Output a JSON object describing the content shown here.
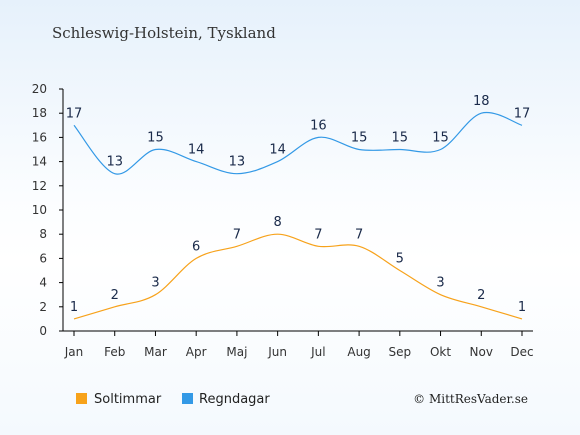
{
  "chart_data": {
    "type": "line",
    "title": "Schleswig-Holstein, Tyskland",
    "categories": [
      "Jan",
      "Feb",
      "Mar",
      "Apr",
      "Maj",
      "Jun",
      "Jul",
      "Aug",
      "Sep",
      "Okt",
      "Nov",
      "Dec"
    ],
    "series": [
      {
        "name": "Soltimmar",
        "color": "#f7a21b",
        "values": [
          1,
          2,
          3,
          6,
          7,
          8,
          7,
          7,
          5,
          3,
          2,
          1
        ]
      },
      {
        "name": "Regndagar",
        "color": "#3399e6",
        "values": [
          17,
          13,
          15,
          14,
          13,
          14,
          16,
          15,
          15,
          15,
          18,
          17
        ]
      }
    ],
    "ylim": [
      0,
      20
    ],
    "yticks": [
      "0",
      "2",
      "4",
      "6",
      "8",
      "10",
      "12",
      "14",
      "16",
      "18",
      "20"
    ],
    "grid": false,
    "legend": "bottom-left"
  },
  "credit": "© MittResVader.se"
}
